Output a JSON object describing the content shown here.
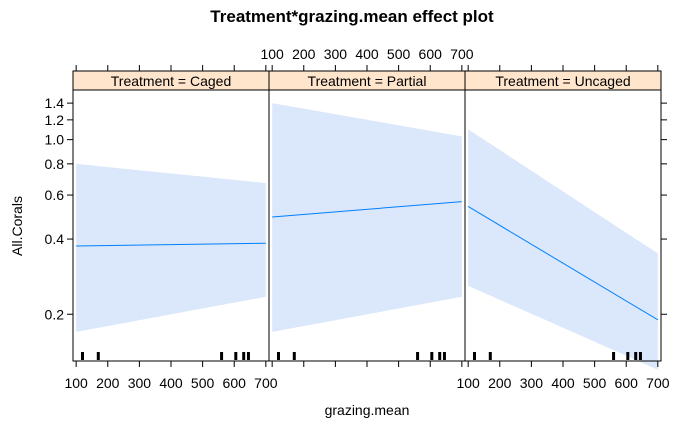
{
  "chart_data": {
    "type": "line",
    "title": "Treatment*grazing.mean effect plot",
    "xlabel": "grazing.mean",
    "ylabel": "All.Corals",
    "xlim": [
      90,
      710
    ],
    "ylim": [
      0.13,
      1.58
    ],
    "y_scale": "log",
    "x_ticks": [
      100,
      200,
      300,
      400,
      500,
      600,
      700
    ],
    "x_tick_labels": [
      "100",
      "200",
      "300",
      "400",
      "500",
      "600",
      "700"
    ],
    "y_ticks": [
      0.2,
      0.4,
      0.6,
      0.8,
      1.0,
      1.2,
      1.4
    ],
    "y_tick_labels": [
      "0.2",
      "0.4",
      "0.6",
      "0.8",
      "1.0",
      "1.2",
      "1.4"
    ],
    "colors": {
      "line": "#0080ff",
      "band": "#dbe7fb",
      "strip": "#ffe5cc",
      "border": "#000000"
    },
    "rug": [
      120,
      170,
      560,
      605,
      630,
      645
    ],
    "panels": [
      {
        "name": "Treatment = Caged",
        "x": [
          100,
          700
        ],
        "fit": [
          0.375,
          0.385
        ],
        "lower": [
          0.17,
          0.235
        ],
        "upper": [
          0.8,
          0.67
        ]
      },
      {
        "name": "Treatment = Partial",
        "x": [
          100,
          700
        ],
        "fit": [
          0.49,
          0.565
        ],
        "lower": [
          0.17,
          0.235
        ],
        "upper": [
          1.4,
          1.03
        ]
      },
      {
        "name": "Treatment = Uncaged",
        "x": [
          100,
          700
        ],
        "fit": [
          0.54,
          0.19
        ],
        "lower": [
          0.26,
          0.12
        ],
        "upper": [
          1.1,
          0.35
        ]
      }
    ]
  }
}
